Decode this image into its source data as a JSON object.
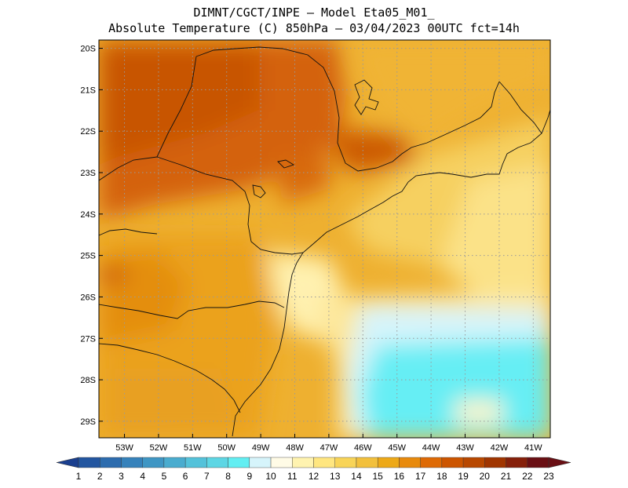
{
  "title": {
    "line1": "DIMNT/CGCT/INPE –  Model Eta05_M01_",
    "line2": "Absolute Temperature (C) 850hPa –  03/04/2023 00UTC fct=14h"
  },
  "map": {
    "lon_range": [
      -53.75,
      -40.5
    ],
    "lat_range": [
      -29.4,
      -19.8
    ],
    "lon_ticks": [
      {
        "value": -53,
        "label": "53W"
      },
      {
        "value": -52,
        "label": "52W"
      },
      {
        "value": -51,
        "label": "51W"
      },
      {
        "value": -50,
        "label": "50W"
      },
      {
        "value": -49,
        "label": "49W"
      },
      {
        "value": -48,
        "label": "48W"
      },
      {
        "value": -47,
        "label": "47W"
      },
      {
        "value": -46,
        "label": "46W"
      },
      {
        "value": -45,
        "label": "45W"
      },
      {
        "value": -44,
        "label": "44W"
      },
      {
        "value": -43,
        "label": "43W"
      },
      {
        "value": -42,
        "label": "42W"
      },
      {
        "value": -41,
        "label": "41W"
      }
    ],
    "lat_ticks": [
      {
        "value": -20,
        "label": "20S"
      },
      {
        "value": -21,
        "label": "21S"
      },
      {
        "value": -22,
        "label": "22S"
      },
      {
        "value": -23,
        "label": "23S"
      },
      {
        "value": -24,
        "label": "24S"
      },
      {
        "value": -25,
        "label": "25S"
      },
      {
        "value": -26,
        "label": "26S"
      },
      {
        "value": -27,
        "label": "27S"
      },
      {
        "value": -28,
        "label": "28S"
      },
      {
        "value": -29,
        "label": "29S"
      }
    ],
    "grid": "dotted"
  },
  "colorbar": {
    "labels": [
      "1",
      "2",
      "3",
      "4",
      "5",
      "6",
      "7",
      "8",
      "9",
      "10",
      "11",
      "12",
      "13",
      "14",
      "15",
      "16",
      "17",
      "18",
      "19",
      "20",
      "21",
      "22",
      "23"
    ],
    "colors": [
      "#1a3f8f",
      "#2356a0",
      "#2d6cae",
      "#3682bb",
      "#3f96c4",
      "#4aaccf",
      "#54c2da",
      "#5dd6e4",
      "#62eef2",
      "#d6f4fb",
      "#fffbe6",
      "#fff3b0",
      "#ffe680",
      "#f8d458",
      "#f2c03c",
      "#eda918",
      "#e88a0c",
      "#de6a05",
      "#cc5500",
      "#b84800",
      "#a03500",
      "#86200a",
      "#6a0f14"
    ]
  }
}
